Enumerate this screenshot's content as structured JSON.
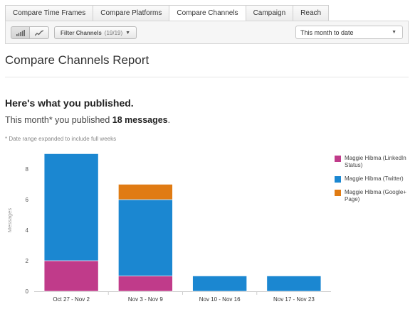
{
  "tabs": [
    {
      "label": "Compare Time Frames",
      "active": false
    },
    {
      "label": "Compare Platforms",
      "active": false
    },
    {
      "label": "Compare Channels",
      "active": true
    },
    {
      "label": "Campaign",
      "active": false
    },
    {
      "label": "Reach",
      "active": false
    }
  ],
  "toolbar": {
    "bar_view_icon": "bar-chart-icon",
    "line_view_icon": "line-chart-icon",
    "filter_label": "Filter Channels",
    "filter_count": "(19/19)",
    "date_range_value": "This month to date"
  },
  "report": {
    "title": "Compare Channels Report",
    "heading": "Here's what you published.",
    "summary_prefix": "This month* you published",
    "summary_count": "18 messages",
    "summary_suffix": ".",
    "note": "* Date range expanded to include full weeks"
  },
  "legend": [
    {
      "label": "Maggie Hibma (LinkedIn Status)",
      "color": "#c03b8a"
    },
    {
      "label": "Maggie Hibma (Twitter)",
      "color": "#1b87d1"
    },
    {
      "label": "Maggie Hibma (Google+ Page)",
      "color": "#e07b13"
    }
  ],
  "chart_data": {
    "type": "bar",
    "stacked": true,
    "categories": [
      "Oct 27 - Nov 2",
      "Nov 3 - Nov 9",
      "Nov 10 - Nov 16",
      "Nov 17 - Nov 23"
    ],
    "series": [
      {
        "name": "Maggie Hibma (LinkedIn Status)",
        "color": "#c03b8a",
        "values": [
          2,
          1,
          0,
          0
        ]
      },
      {
        "name": "Maggie Hibma (Twitter)",
        "color": "#1b87d1",
        "values": [
          7,
          5,
          1,
          1
        ]
      },
      {
        "name": "Maggie Hibma (Google+ Page)",
        "color": "#e07b13",
        "values": [
          0,
          1,
          0,
          0
        ]
      }
    ],
    "ylabel": "Messages",
    "yticks": [
      0,
      2,
      4,
      6,
      8
    ],
    "ylim": [
      0,
      9.3
    ],
    "grid": false,
    "legend_position": "right"
  }
}
